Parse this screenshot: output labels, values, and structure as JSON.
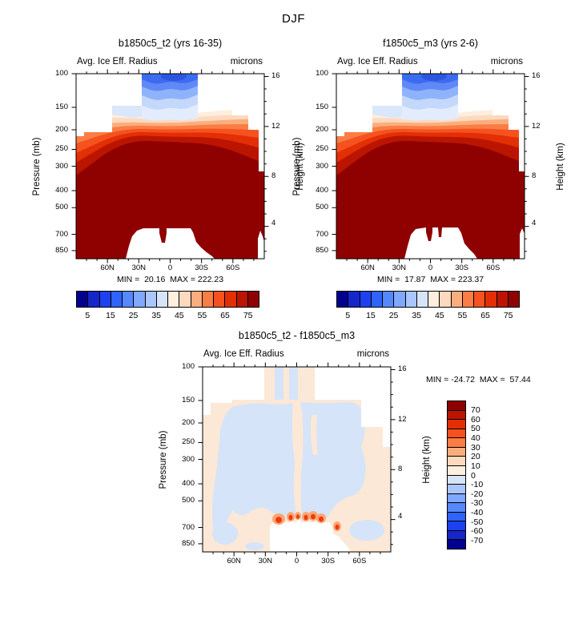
{
  "figure_title": "DJF",
  "axes": {
    "pressure_label": "Pressure (mb)",
    "height_label": "Height (km)",
    "pressure_ticks": [
      "100",
      "150",
      "200",
      "250",
      "300",
      "400",
      "500",
      "700",
      "850"
    ],
    "height_ticks": [
      "16",
      "12",
      "8",
      "4"
    ],
    "lat_ticks": [
      "60N",
      "30N",
      "0",
      "30S",
      "60S"
    ]
  },
  "palette": [
    "#02028f",
    "#1527c8",
    "#1d41ee",
    "#2f63fa",
    "#5588fd",
    "#80a8fe",
    "#abc6fc",
    "#d6e4fa",
    "#fdeede",
    "#fcd9bf",
    "#fbae7d",
    "#fa7d45",
    "#f5521f",
    "#e32f05",
    "#bb1501",
    "#8f0000"
  ],
  "colorbar": {
    "labels": [
      "5",
      "15",
      "25",
      "35",
      "45",
      "55",
      "65",
      "75"
    ]
  },
  "diff_colorbar": {
    "labels": [
      "70",
      "60",
      "50",
      "40",
      "30",
      "20",
      "10",
      "0",
      "-10",
      "-20",
      "-30",
      "-40",
      "-50",
      "-60",
      "-70"
    ]
  },
  "panels": [
    {
      "title": "b1850c5_t2 (yrs 16-35)",
      "subtitle_left": "Avg. Ice Eff. Radius",
      "subtitle_right": "microns",
      "stats": "MIN =  20.16  MAX = 222.23"
    },
    {
      "title": "f1850c5_m3 (yrs 2-6)",
      "subtitle_left": "Avg. Ice Eff. Radius",
      "subtitle_right": "microns",
      "stats": "MIN =  17.87  MAX = 223.37"
    },
    {
      "title": "b1850c5_t2 - f1850c5_m3",
      "subtitle_left": "Avg. Ice Eff. Radius",
      "subtitle_right": "microns",
      "stats": "MIN = -24.72  MAX =  57.44"
    }
  ],
  "chart_data": [
    {
      "type": "heatmap",
      "title": "b1850c5_t2 (yrs 16-35)",
      "season": "DJF",
      "variable": "Avg. Ice Eff. Radius",
      "units": "microns",
      "x_axis": {
        "ticks": [
          "60N",
          "30N",
          "0",
          "30S",
          "60S"
        ],
        "range": [
          "90N",
          "90S"
        ]
      },
      "y_axis_left": {
        "label": "Pressure (mb)",
        "ticks": [
          100,
          150,
          200,
          250,
          300,
          400,
          500,
          700,
          850
        ],
        "scale": "log"
      },
      "y_axis_right": {
        "label": "Height (km)",
        "ticks": [
          16,
          12,
          8,
          4
        ]
      },
      "min": 20.16,
      "max": 222.23,
      "contour_levels": [
        5,
        10,
        15,
        20,
        25,
        30,
        35,
        40,
        45,
        50,
        55,
        60,
        65,
        70,
        75
      ],
      "colorbar_tick_labels": [
        5,
        15,
        25,
        35,
        45,
        55,
        65,
        75
      ],
      "legend_position": "bottom"
    },
    {
      "type": "heatmap",
      "title": "f1850c5_m3 (yrs 2-6)",
      "season": "DJF",
      "variable": "Avg. Ice Eff. Radius",
      "units": "microns",
      "x_axis": {
        "ticks": [
          "60N",
          "30N",
          "0",
          "30S",
          "60S"
        ],
        "range": [
          "90N",
          "90S"
        ]
      },
      "y_axis_left": {
        "label": "Pressure (mb)",
        "ticks": [
          100,
          150,
          200,
          250,
          300,
          400,
          500,
          700,
          850
        ],
        "scale": "log"
      },
      "y_axis_right": {
        "label": "Height (km)",
        "ticks": [
          16,
          12,
          8,
          4
        ]
      },
      "min": 17.87,
      "max": 223.37,
      "contour_levels": [
        5,
        10,
        15,
        20,
        25,
        30,
        35,
        40,
        45,
        50,
        55,
        60,
        65,
        70,
        75
      ],
      "colorbar_tick_labels": [
        5,
        15,
        25,
        35,
        45,
        55,
        65,
        75
      ],
      "legend_position": "bottom"
    },
    {
      "type": "heatmap",
      "title": "b1850c5_t2 - f1850c5_m3",
      "season": "DJF",
      "variable": "Avg. Ice Eff. Radius",
      "units": "microns",
      "x_axis": {
        "ticks": [
          "60N",
          "30N",
          "0",
          "30S",
          "60S"
        ],
        "range": [
          "90N",
          "90S"
        ]
      },
      "y_axis_left": {
        "label": "Pressure (mb)",
        "ticks": [
          100,
          150,
          200,
          250,
          300,
          400,
          500,
          700,
          850
        ],
        "scale": "log"
      },
      "y_axis_right": {
        "label": "Height (km)",
        "ticks": [
          16,
          12,
          8,
          4
        ]
      },
      "min": -24.72,
      "max": 57.44,
      "contour_levels": [
        -70,
        -60,
        -50,
        -40,
        -30,
        -20,
        -10,
        0,
        10,
        20,
        30,
        40,
        50,
        60,
        70
      ],
      "colorbar_tick_labels": [
        70,
        60,
        50,
        40,
        30,
        20,
        10,
        0,
        -10,
        -20,
        -30,
        -40,
        -50,
        -60,
        -70
      ],
      "legend_position": "right"
    }
  ]
}
